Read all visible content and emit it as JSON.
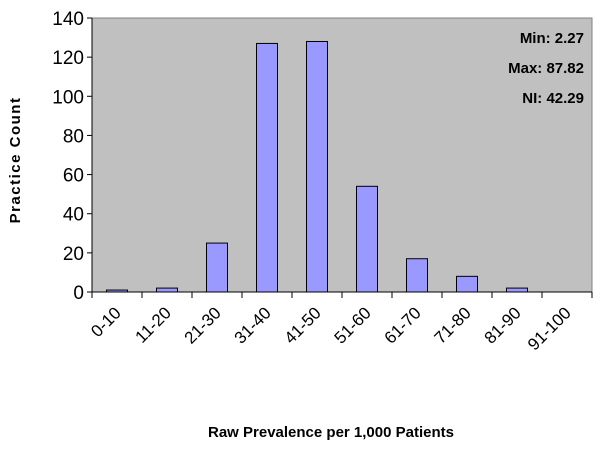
{
  "chart_data": {
    "type": "bar",
    "title": "",
    "xlabel": "Raw Prevalence per 1,000 Patients",
    "ylabel": "Practice Count",
    "categories": [
      "0-10",
      "11-20",
      "21-30",
      "31-40",
      "41-50",
      "51-60",
      "61-70",
      "71-80",
      "81-90",
      "91-100"
    ],
    "values": [
      1,
      2,
      25,
      127,
      128,
      54,
      17,
      8,
      2,
      0
    ],
    "ylim": [
      0,
      140
    ],
    "yticks": [
      "0",
      "20",
      "40",
      "60",
      "80",
      "100",
      "120",
      "140"
    ],
    "grid": false,
    "legend": "none",
    "annotations": [
      "Min: 2.27",
      "Max: 87.82",
      "NI: 42.29"
    ],
    "colors": {
      "plot_background": "#c0c0c0",
      "bar_fill": "#9999ff",
      "bar_stroke": "#000000"
    }
  }
}
